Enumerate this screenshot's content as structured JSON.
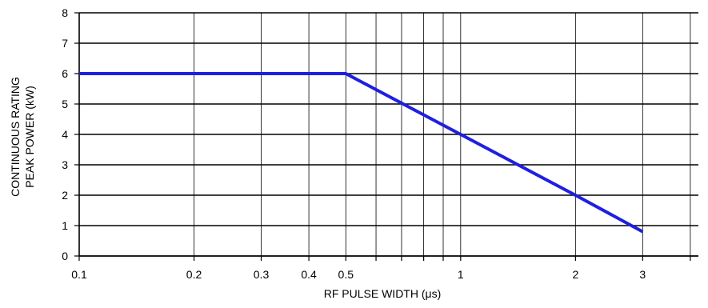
{
  "chart_data": {
    "type": "line",
    "xlabel": "RF PULSE WIDTH (μs)",
    "ylabel_lines": [
      "CONTINUOUS RATING",
      "PEAK POWER (kW)"
    ],
    "x_scale": "log",
    "xlim": [
      0.1,
      4.2
    ],
    "ylim": [
      0,
      8
    ],
    "x_ticks": [
      {
        "value": 0.1,
        "label": "0.1"
      },
      {
        "value": 0.2,
        "label": "0.2"
      },
      {
        "value": 0.3,
        "label": "0.3"
      },
      {
        "value": 0.4,
        "label": "0.4"
      },
      {
        "value": 0.5,
        "label": "0.5"
      },
      {
        "value": 1,
        "label": "1"
      },
      {
        "value": 2,
        "label": "2"
      },
      {
        "value": 3,
        "label": "3"
      }
    ],
    "x_minor_grid": [
      0.6,
      0.7,
      0.8,
      0.9,
      4
    ],
    "y_ticks": [
      0,
      1,
      2,
      3,
      4,
      5,
      6,
      7,
      8
    ],
    "grid": true,
    "series": [
      {
        "color": "#1f1fe0",
        "points": [
          {
            "x": 0.1,
            "y": 6
          },
          {
            "x": 0.5,
            "y": 6
          },
          {
            "x": 1,
            "y": 4
          },
          {
            "x": 2,
            "y": 2
          },
          {
            "x": 3,
            "y": 0.8
          }
        ]
      }
    ]
  }
}
